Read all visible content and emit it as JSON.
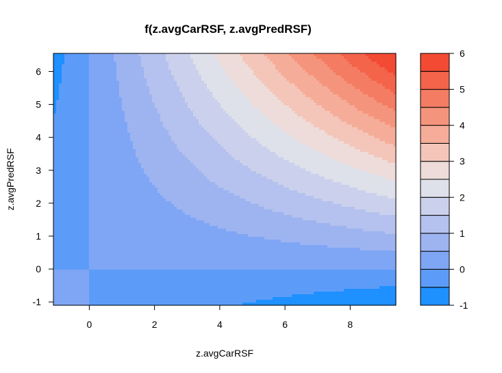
{
  "chart_data": {
    "type": "heatmap",
    "subtype": "filled-contour",
    "title": "f(z.avgCarRSF, z.avgPredRSF)",
    "xlabel": "z.avgCarRSF",
    "ylabel": "z.avgPredRSF",
    "xlim": [
      -1.1,
      9.4
    ],
    "ylim": [
      -1.1,
      6.55
    ],
    "xticks": [
      0,
      2,
      4,
      6,
      8
    ],
    "yticks": [
      -1,
      0,
      1,
      2,
      3,
      4,
      5,
      6
    ],
    "function": "f = 0.1 * x * y",
    "levels": [
      -1,
      -0.5,
      0,
      0.5,
      1,
      1.5,
      2,
      2.5,
      3,
      3.5,
      4,
      4.5,
      5,
      5.5,
      6
    ],
    "level_colors": [
      "#1e90ff",
      "#5c9cf8",
      "#7fa6f5",
      "#9db4f1",
      "#b5c1ee",
      "#cbd1ec",
      "#dee0ea",
      "#eddcd9",
      "#f4c6b9",
      "#f5ad9a",
      "#f5947c",
      "#f47c62",
      "#f3644a",
      "#f24a33"
    ],
    "legend": {
      "position": "right",
      "ticks": [
        -1,
        0,
        1,
        2,
        3,
        4,
        5,
        6
      ]
    },
    "grid": false
  }
}
